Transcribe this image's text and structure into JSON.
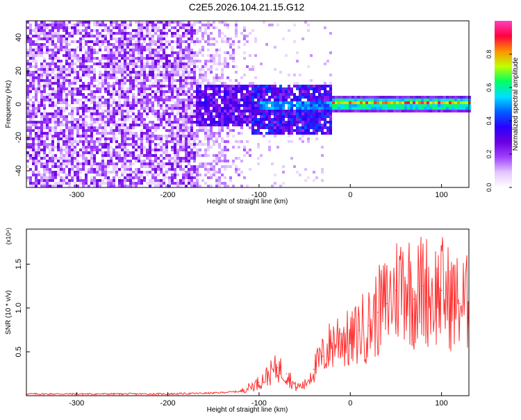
{
  "title": "C2E5.2026.104.21.15.G12",
  "chart_data": [
    {
      "type": "heatmap",
      "xlabel": "Height of straight line (km)",
      "ylabel": "Frequency (Hz)",
      "xlim": [
        -355,
        130
      ],
      "ylim": [
        -50,
        50
      ],
      "xticks": [
        -300,
        -200,
        -100,
        0,
        100
      ],
      "yticks": [
        -40,
        -20,
        0,
        20,
        40
      ],
      "colorbar": {
        "label": "Normalized spectral amplitude",
        "range": [
          0,
          1
        ],
        "ticks": [
          "0.0",
          "0.2",
          "0.4",
          "0.6",
          "0.8"
        ],
        "colors": [
          "#ffffff",
          "#e2c6ff",
          "#a040ff",
          "#6a00e0",
          "#2a00ff",
          "#0060ff",
          "#00e0ff",
          "#00ff60",
          "#c0ff00",
          "#ff9000",
          "#ff0040",
          "#ff40c0"
        ]
      },
      "description_regions": [
        {
          "x_range": [
            -355,
            -170
          ],
          "freq_range": [
            -50,
            50
          ],
          "amplitude": 0.2
        },
        {
          "x_range": [
            -170,
            -20
          ],
          "freq_range": [
            -18,
            12
          ],
          "amplitude": 0.45
        },
        {
          "x_range": [
            -20,
            130
          ],
          "freq_range": [
            -1,
            4
          ],
          "amplitude": 0.85
        }
      ]
    },
    {
      "type": "line",
      "xlabel": "Height of straight line (km)",
      "ylabel": "SNR (10 * v/v)",
      "y_scale_label": "(x10⁴)",
      "xlim": [
        -355,
        130
      ],
      "ylim": [
        0,
        1.9
      ],
      "xticks": [
        -300,
        -200,
        -100,
        0,
        100
      ],
      "yticks": [
        0.5,
        1.0,
        1.5
      ],
      "ytick_labels": [
        "0.5",
        "1.0",
        "1.5"
      ],
      "series": [
        {
          "name": "SNR",
          "color": "#ff3030",
          "x": [
            -355,
            -300,
            -250,
            -200,
            -150,
            -120,
            -100,
            -80,
            -70,
            -60,
            -50,
            -40,
            -30,
            -20,
            -10,
            0,
            10,
            20,
            30,
            40,
            50,
            60,
            70,
            80,
            90,
            100,
            110,
            120,
            130
          ],
          "y": [
            0.02,
            0.02,
            0.02,
            0.02,
            0.03,
            0.05,
            0.15,
            0.32,
            0.25,
            0.1,
            0.12,
            0.3,
            0.45,
            0.6,
            0.7,
            0.6,
            0.75,
            0.8,
            0.95,
            1.05,
            1.2,
            1.35,
            1.1,
            1.25,
            1.15,
            1.2,
            1.1,
            1.05,
            1.05
          ]
        }
      ]
    }
  ]
}
